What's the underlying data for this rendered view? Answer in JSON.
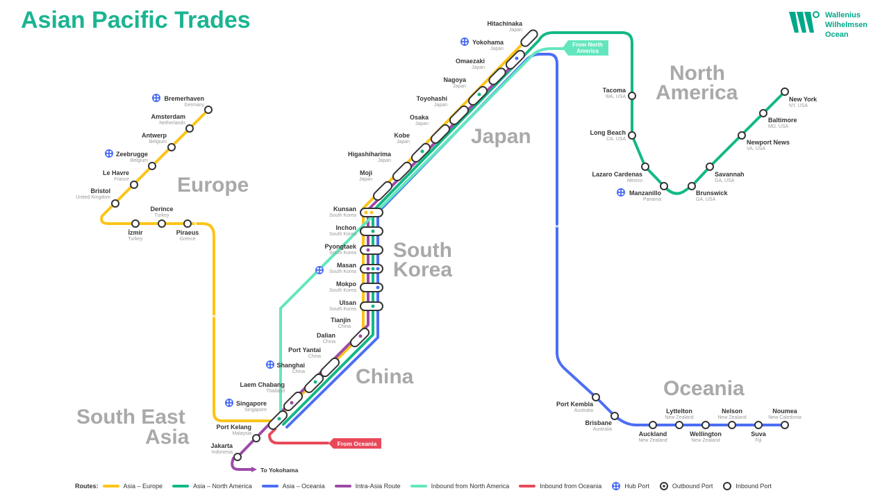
{
  "title": "Asian Pacific Trades",
  "brand": {
    "lines": [
      "Wallenius",
      "Wilhelmsen",
      "Ocean"
    ],
    "color": "#00a88a"
  },
  "colors": {
    "asia_europe": "#fcc419",
    "asia_north_america": "#12b886",
    "asia_oceania": "#4c6ef5",
    "intra_asia": "#9c4aa8",
    "inbound_north_america": "#63e6be",
    "inbound_oceania": "#e8495a",
    "region_text": "#a9a9a9"
  },
  "regions": [
    {
      "id": "europe",
      "lines": [
        "Europe"
      ]
    },
    {
      "id": "japan",
      "lines": [
        "Japan"
      ]
    },
    {
      "id": "north-america",
      "lines": [
        "North",
        "America"
      ]
    },
    {
      "id": "south-korea",
      "lines": [
        "South",
        "Korea"
      ]
    },
    {
      "id": "china",
      "lines": [
        "China"
      ]
    },
    {
      "id": "oceania",
      "lines": [
        "Oceania"
      ]
    },
    {
      "id": "south-east-asia",
      "lines": [
        "South East",
        "Asia"
      ]
    }
  ],
  "ports": [
    {
      "id": "bremerhaven",
      "name": "Bremerhaven",
      "country": "Germany",
      "hub": true
    },
    {
      "id": "amsterdam",
      "name": "Amsterdam",
      "country": "Netherlands"
    },
    {
      "id": "antwerp",
      "name": "Antwerp",
      "country": "Belgium"
    },
    {
      "id": "zeebrugge",
      "name": "Zeebrugge",
      "country": "Belgium",
      "hub": true
    },
    {
      "id": "le-havre",
      "name": "Le Havre",
      "country": "France"
    },
    {
      "id": "bristol",
      "name": "Bristol",
      "country": "United Kingdom"
    },
    {
      "id": "izmir",
      "name": "İzmir",
      "country": "Turkey"
    },
    {
      "id": "derince",
      "name": "Derince",
      "country": "Turkey"
    },
    {
      "id": "piraeus",
      "name": "Piraeus",
      "country": "Greece"
    },
    {
      "id": "hitachinaka",
      "name": "Hitachinaka",
      "country": "Japan"
    },
    {
      "id": "yokohama",
      "name": "Yokohama",
      "country": "Japan",
      "hub": true
    },
    {
      "id": "omaezaki",
      "name": "Omaezaki",
      "country": "Japan"
    },
    {
      "id": "nagoya",
      "name": "Nagoya",
      "country": "Japan"
    },
    {
      "id": "toyohashi",
      "name": "Toyohashi",
      "country": "Japan"
    },
    {
      "id": "osaka",
      "name": "Osaka",
      "country": "Japan"
    },
    {
      "id": "kobe",
      "name": "Kobe",
      "country": "Japan"
    },
    {
      "id": "higashiharima",
      "name": "Higashiharima",
      "country": "Japan"
    },
    {
      "id": "moji",
      "name": "Moji",
      "country": "Japan"
    },
    {
      "id": "kunsan",
      "name": "Kunsan",
      "country": "South Korea"
    },
    {
      "id": "inchon",
      "name": "Inchon",
      "country": "South Korea"
    },
    {
      "id": "pyongtaek",
      "name": "Pyongtaek",
      "country": "South Korea"
    },
    {
      "id": "masan",
      "name": "Masan",
      "country": "South Korea",
      "hub": true
    },
    {
      "id": "mokpo",
      "name": "Mokpo",
      "country": "South Korea"
    },
    {
      "id": "ulsan",
      "name": "Ulsan",
      "country": "South Korea"
    },
    {
      "id": "tianjin",
      "name": "Tianjin",
      "country": "China"
    },
    {
      "id": "dalian",
      "name": "Dalian",
      "country": "China"
    },
    {
      "id": "port-yantai",
      "name": "Port Yantai",
      "country": "China"
    },
    {
      "id": "shanghai",
      "name": "Shanghai",
      "country": "China",
      "hub": true
    },
    {
      "id": "laem-chabang",
      "name": "Laem Chabang",
      "country": "Thailand"
    },
    {
      "id": "singapore",
      "name": "Singapore",
      "country": "Singapore",
      "hub": true
    },
    {
      "id": "port-kelang",
      "name": "Port Kelang",
      "country": "Malaysia"
    },
    {
      "id": "jakarta",
      "name": "Jakarta",
      "country": "Indonesia"
    },
    {
      "id": "tacoma",
      "name": "Tacoma",
      "country": "WA, USA"
    },
    {
      "id": "long-beach",
      "name": "Long Beach",
      "country": "CA, USA"
    },
    {
      "id": "lazaro-cardenas",
      "name": "Lazaro Cardenas",
      "country": "Mexico"
    },
    {
      "id": "manzanillo",
      "name": "Manzanillo",
      "country": "Panama",
      "hub": true
    },
    {
      "id": "brunswick",
      "name": "Brunswick",
      "country": "GA, USA"
    },
    {
      "id": "savannah",
      "name": "Savannah",
      "country": "GA, USA"
    },
    {
      "id": "newport-news",
      "name": "Newport News",
      "country": "VA, USA"
    },
    {
      "id": "baltimore",
      "name": "Baltimore",
      "country": "MD, USA"
    },
    {
      "id": "new-york",
      "name": "New York",
      "country": "NY, USA"
    },
    {
      "id": "port-kembla",
      "name": "Port Kembla",
      "country": "Australia"
    },
    {
      "id": "brisbane",
      "name": "Brisbane",
      "country": "Australia"
    },
    {
      "id": "auckland",
      "name": "Auckland",
      "country": "New Zealand"
    },
    {
      "id": "lyttelton",
      "name": "Lyttelton",
      "country": "New Zealand"
    },
    {
      "id": "wellington",
      "name": "Wellington",
      "country": "New Zealand"
    },
    {
      "id": "nelson",
      "name": "Nelson",
      "country": "New Zealand"
    },
    {
      "id": "suva",
      "name": "Suva",
      "country": "Fiji"
    },
    {
      "id": "noumea",
      "name": "Noumea",
      "country": "New Caledonia"
    }
  ],
  "callouts": {
    "from_north_america": [
      "From North",
      "America"
    ],
    "from_oceania": "From Oceania",
    "to_yokohama": "To Yokohama"
  },
  "legend": {
    "routes_label": "Routes:",
    "routes": [
      {
        "label": "Asia – Europe",
        "color": "#fcc419"
      },
      {
        "label": "Asia – North America",
        "color": "#12b886"
      },
      {
        "label": "Asia – Oceania",
        "color": "#4c6ef5"
      },
      {
        "label": "Intra-Asia Route",
        "color": "#9c4aa8"
      },
      {
        "label": "Inbound from North America",
        "color": "#63e6be"
      },
      {
        "label": "Inbound from Oceania",
        "color": "#e8495a"
      }
    ],
    "symbols": [
      {
        "label": "Hub Port",
        "icon": "hub-port-icon"
      },
      {
        "label": "Outbound Port",
        "icon": "outbound-port-icon"
      },
      {
        "label": "Inbound Port",
        "icon": "inbound-port-icon"
      }
    ]
  }
}
